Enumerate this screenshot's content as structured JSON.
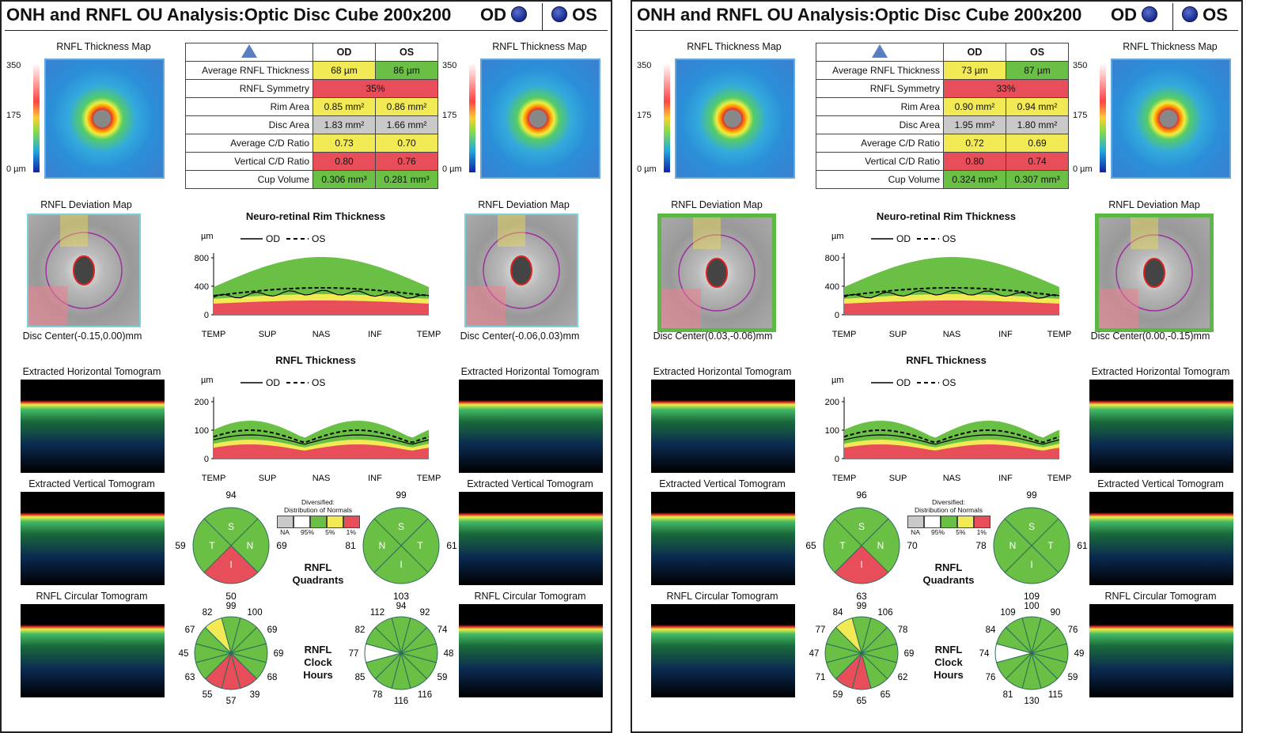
{
  "legend": {
    "na": "NA",
    "p95": "95%",
    "p5": "5%",
    "p1": "1%",
    "title": "Diversified:",
    "subtitle": "Distribution of Normals"
  },
  "colors": {
    "green": "#6ac045",
    "yellow": "#f2ea55",
    "red": "#e84e5a",
    "gray": "#c9c9c9",
    "white": "#ffffff"
  },
  "panels": [
    {
      "title": "ONH and RNFL OU Analysis:Optic Disc Cube 200x200",
      "od": "OD",
      "os": "OS",
      "rnfl_map_title": "RNFL Thickness Map",
      "scale": [
        "350",
        "175",
        "0 µm"
      ],
      "table": {
        "headers": [
          "",
          "OD",
          "OS"
        ],
        "rows": [
          {
            "name": "Average RNFL Thickness",
            "od": "68 µm",
            "os": "86 µm",
            "od_c": "yellow",
            "os_c": "green"
          },
          {
            "name": "RNFL Symmetry",
            "span": "35%",
            "span_c": "red"
          },
          {
            "name": "Rim Area",
            "od": "0.85 mm²",
            "os": "0.86 mm²",
            "od_c": "yellow",
            "os_c": "yellow"
          },
          {
            "name": "Disc Area",
            "od": "1.83 mm²",
            "os": "1.66 mm²",
            "od_c": "gray",
            "os_c": "gray"
          },
          {
            "name": "Average C/D Ratio",
            "od": "0.73",
            "os": "0.70",
            "od_c": "yellow",
            "os_c": "yellow"
          },
          {
            "name": "Vertical C/D Ratio",
            "od": "0.80",
            "os": "0.76",
            "od_c": "red",
            "os_c": "red"
          },
          {
            "name": "Cup Volume",
            "od": "0.306 mm³",
            "os": "0.281 mm³",
            "od_c": "green",
            "os_c": "green"
          }
        ]
      },
      "deviation_title": "RNFL Deviation Map",
      "disc_center_od": "Disc Center(-0.15,0.00)mm",
      "disc_center_os": "Disc Center(-0.06,0.03)mm",
      "horiz_tomo": "Extracted Horizontal Tomogram",
      "vert_tomo": "Extracted Vertical Tomogram",
      "circ_tomo": "RNFL Circular Tomogram",
      "rim_title": "Neuro-retinal Rim Thickness",
      "rnfl_title": "RNFL Thickness",
      "legend_od": "OD",
      "legend_os": "OS",
      "unit": "µm",
      "xticks": [
        "TEMP",
        "SUP",
        "NAS",
        "INF",
        "TEMP"
      ],
      "rim_yticks": [
        "800",
        "400",
        "0"
      ],
      "rnfl_yticks": [
        "200",
        "100",
        "0"
      ],
      "quadrants_label": [
        "RNFL",
        "Quadrants"
      ],
      "clock_label": [
        "RNFL",
        "Clock",
        "Hours"
      ],
      "quad_od": {
        "S": "94",
        "T": "59",
        "N": "69",
        "I": "50",
        "S_c": "green",
        "T_c": "green",
        "N_c": "green",
        "I_c": "red"
      },
      "quad_os": {
        "S": "99",
        "N": "81",
        "T": "61",
        "I": "103",
        "S_c": "green",
        "N_c": "green",
        "T_c": "green",
        "I_c": "green"
      },
      "clock_od": {
        "values": [
          "99",
          "100",
          "69",
          "69",
          "68",
          "39",
          "57",
          "55",
          "63",
          "45",
          "67",
          "82"
        ],
        "colors": [
          "green",
          "green",
          "green",
          "green",
          "green",
          "red",
          "red",
          "red",
          "green",
          "green",
          "green",
          "yellow"
        ]
      },
      "clock_os": {
        "values": [
          "94",
          "92",
          "74",
          "48",
          "59",
          "116",
          "116",
          "78",
          "85",
          "77",
          "82",
          "112"
        ],
        "colors": [
          "green",
          "green",
          "green",
          "green",
          "green",
          "green",
          "green",
          "green",
          "green",
          "white",
          "green",
          "green"
        ]
      }
    },
    {
      "title": "ONH and RNFL OU Analysis:Optic Disc Cube 200x200",
      "od": "OD",
      "os": "OS",
      "rnfl_map_title": "RNFL Thickness Map",
      "scale": [
        "350",
        "175",
        "0 µm"
      ],
      "table": {
        "headers": [
          "",
          "OD",
          "OS"
        ],
        "rows": [
          {
            "name": "Average RNFL Thickness",
            "od": "73 µm",
            "os": "87 µm",
            "od_c": "yellow",
            "os_c": "green"
          },
          {
            "name": "RNFL Symmetry",
            "span": "33%",
            "span_c": "red"
          },
          {
            "name": "Rim Area",
            "od": "0.90 mm²",
            "os": "0.94 mm²",
            "od_c": "yellow",
            "os_c": "yellow"
          },
          {
            "name": "Disc Area",
            "od": "1.95 mm²",
            "os": "1.80 mm²",
            "od_c": "gray",
            "os_c": "gray"
          },
          {
            "name": "Average C/D Ratio",
            "od": "0.72",
            "os": "0.69",
            "od_c": "yellow",
            "os_c": "yellow"
          },
          {
            "name": "Vertical C/D Ratio",
            "od": "0.80",
            "os": "0.74",
            "od_c": "red",
            "os_c": "red"
          },
          {
            "name": "Cup Volume",
            "od": "0.324 mm³",
            "os": "0.307 mm³",
            "od_c": "green",
            "os_c": "green"
          }
        ]
      },
      "deviation_title": "RNFL Deviation Map",
      "disc_center_od": "Disc Center(0.03,-0.06)mm",
      "disc_center_os": "Disc Center(0.00,-0.15)mm",
      "horiz_tomo": "Extracted Horizontal Tomogram",
      "vert_tomo": "Extracted Vertical Tomogram",
      "circ_tomo": "RNFL Circular Tomogram",
      "rim_title": "Neuro-retinal Rim Thickness",
      "rnfl_title": "RNFL Thickness",
      "legend_od": "OD",
      "legend_os": "OS",
      "unit": "µm",
      "xticks": [
        "TEMP",
        "SUP",
        "NAS",
        "INF",
        "TEMP"
      ],
      "rim_yticks": [
        "800",
        "400",
        "0"
      ],
      "rnfl_yticks": [
        "200",
        "100",
        "0"
      ],
      "quadrants_label": [
        "RNFL",
        "Quadrants"
      ],
      "clock_label": [
        "RNFL",
        "Clock",
        "Hours"
      ],
      "quad_od": {
        "S": "96",
        "T": "65",
        "N": "70",
        "I": "63",
        "S_c": "green",
        "T_c": "green",
        "N_c": "green",
        "I_c": "red"
      },
      "quad_os": {
        "S": "99",
        "N": "78",
        "T": "61",
        "I": "109",
        "S_c": "green",
        "N_c": "green",
        "T_c": "green",
        "I_c": "green"
      },
      "clock_od": {
        "values": [
          "99",
          "106",
          "78",
          "69",
          "62",
          "65",
          "65",
          "59",
          "71",
          "47",
          "77",
          "84"
        ],
        "colors": [
          "green",
          "green",
          "green",
          "green",
          "green",
          "green",
          "red",
          "red",
          "green",
          "green",
          "green",
          "yellow"
        ]
      },
      "clock_os": {
        "values": [
          "100",
          "90",
          "76",
          "49",
          "59",
          "115",
          "130",
          "81",
          "76",
          "74",
          "84",
          "109"
        ],
        "colors": [
          "green",
          "green",
          "green",
          "green",
          "green",
          "green",
          "green",
          "green",
          "green",
          "white",
          "green",
          "green"
        ]
      }
    }
  ]
}
